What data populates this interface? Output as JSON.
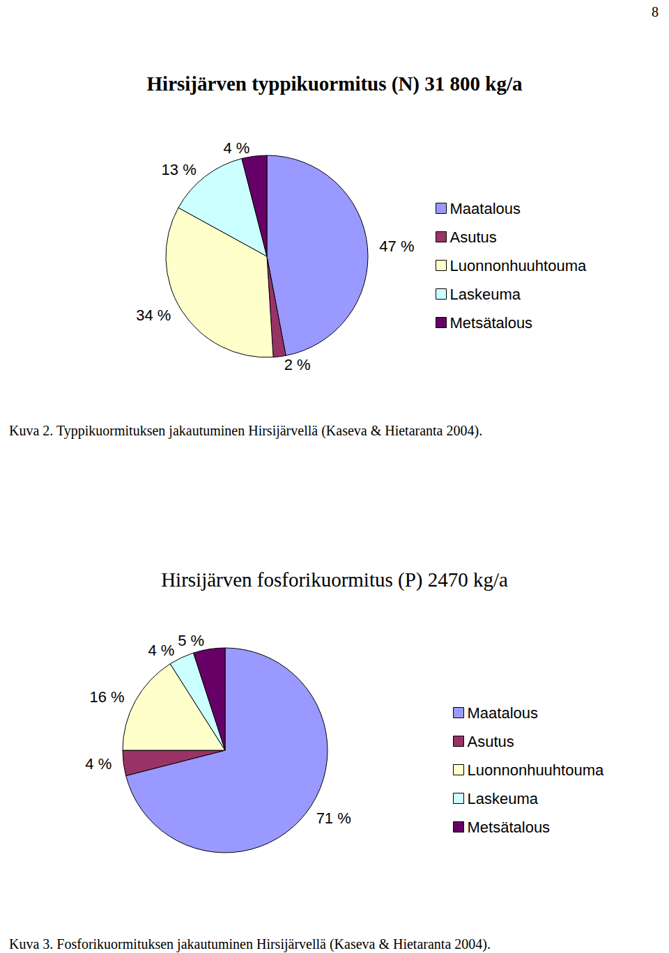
{
  "page_number": "8",
  "chart_data": [
    {
      "type": "pie",
      "title": "Hirsijärven typpikuormitus (N) 31 800 kg/a",
      "caption": "Kuva 2. Typpikuormituksen jakautuminen Hirsijärvellä (Kaseva & Hietaranta 2004).",
      "categories": [
        "Maatalous",
        "Asutus",
        "Luonnonhuuhtouma",
        "Laskeuma",
        "Metsätalous"
      ],
      "values": [
        47,
        2,
        34,
        13,
        4
      ],
      "value_labels": [
        "47 %",
        "2 %",
        "34 %",
        "13 %",
        "4 %"
      ],
      "colors": [
        "#9999ff",
        "#993366",
        "#ffffcc",
        "#ccffff",
        "#660066"
      ],
      "data_labels": true,
      "legend": "right"
    },
    {
      "type": "pie",
      "title": "Hirsijärven fosforikuormitus (P) 2470 kg/a",
      "caption": "Kuva 3. Fosforikuormituksen jakautuminen Hirsijärvellä (Kaseva & Hietaranta 2004).",
      "categories": [
        "Maatalous",
        "Asutus",
        "Luonnonhuuhtouma",
        "Laskeuma",
        "Metsätalous"
      ],
      "values": [
        71,
        4,
        16,
        4,
        5
      ],
      "value_labels": [
        "71 %",
        "4 %",
        "16 %",
        "4 %",
        "5 %"
      ],
      "colors": [
        "#9999ff",
        "#993366",
        "#ffffcc",
        "#ccffff",
        "#660066"
      ],
      "data_labels": true,
      "legend": "right"
    }
  ]
}
